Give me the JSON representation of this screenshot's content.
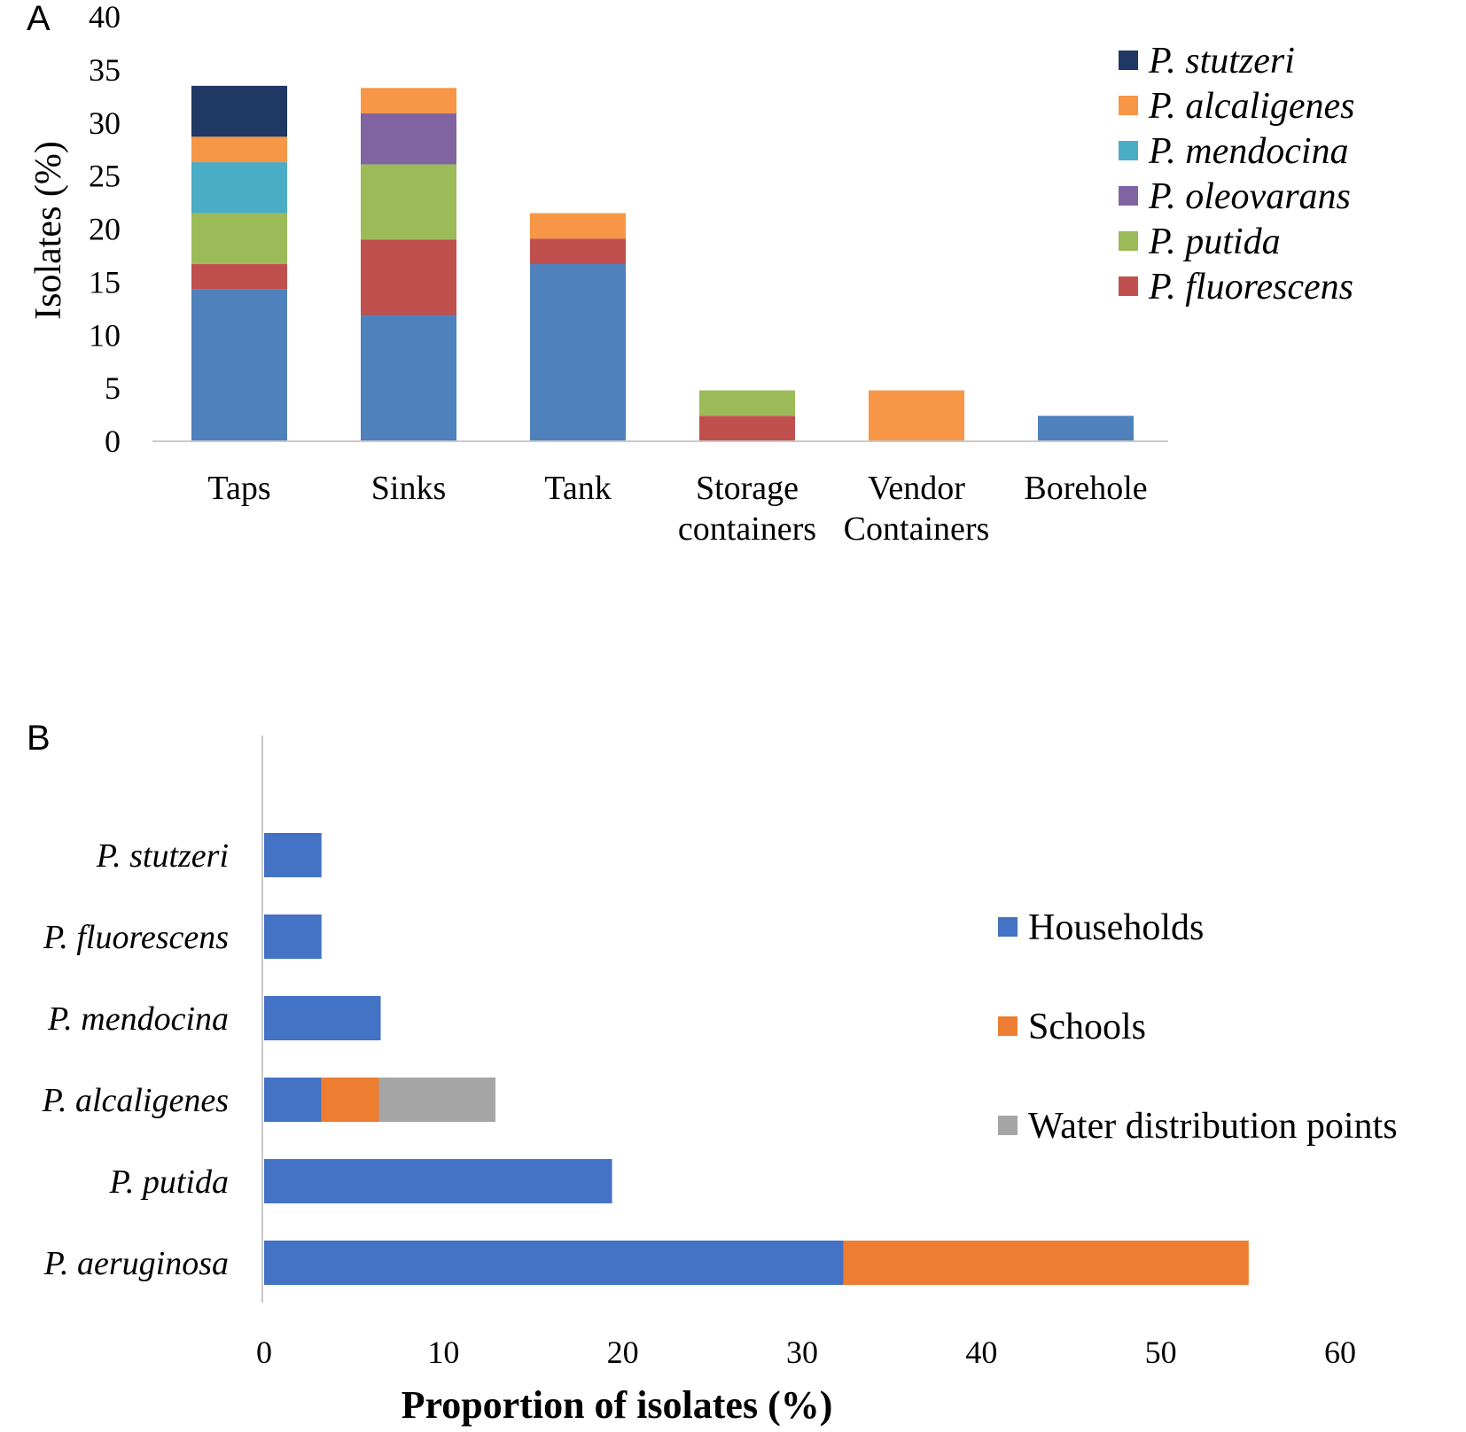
{
  "chart_data": [
    {
      "panel": "A",
      "type": "bar",
      "stacked": true,
      "orientation": "vertical",
      "ylabel": "Isolates (%)",
      "ylim": [
        0,
        40
      ],
      "yticks": [
        0,
        5,
        10,
        15,
        20,
        25,
        30,
        35,
        40
      ],
      "categories": [
        [
          "Taps"
        ],
        [
          "Sinks"
        ],
        [
          "Tank"
        ],
        [
          "Storage",
          "containers"
        ],
        [
          "Vendor",
          "Containers"
        ],
        [
          "Borehole"
        ]
      ],
      "series": [
        {
          "color": "#4f81bd",
          "values": [
            14.3,
            11.9,
            16.7,
            0,
            0,
            2.4
          ]
        },
        {
          "name": "P. fluorescens",
          "color": "#c0504d",
          "values": [
            2.4,
            7.1,
            2.4,
            2.4,
            0,
            0
          ]
        },
        {
          "name": "P. putida",
          "color": "#9bbb59",
          "values": [
            4.8,
            7.1,
            0,
            2.4,
            0,
            0
          ]
        },
        {
          "name": "P. oleovarans",
          "color": "#8064a2",
          "values": [
            0,
            4.8,
            0,
            0,
            0,
            0
          ]
        },
        {
          "name": "P. mendocina",
          "color": "#4bacc6",
          "values": [
            4.8,
            0,
            0,
            0,
            0,
            0
          ]
        },
        {
          "name": "P. alcaligenes",
          "color": "#f79646",
          "values": [
            2.4,
            2.4,
            2.4,
            0,
            4.8,
            0
          ]
        },
        {
          "name": "P. stutzeri",
          "color": "#1f3864",
          "values": [
            4.8,
            0,
            0,
            0,
            0,
            0
          ]
        }
      ],
      "legend": {
        "placement": "top-right",
        "entries": [
          {
            "name": "P. stutzeri",
            "color": "#1f3864"
          },
          {
            "name": "P. alcaligenes",
            "color": "#f79646"
          },
          {
            "name": "P. mendocina",
            "color": "#4bacc6"
          },
          {
            "name": "P. oleovarans",
            "color": "#8064a2"
          },
          {
            "name": "P. putida",
            "color": "#9bbb59"
          },
          {
            "name": "P. fluorescens",
            "color": "#c0504d"
          }
        ]
      }
    },
    {
      "panel": "B",
      "type": "bar",
      "stacked": true,
      "orientation": "horizontal",
      "xlabel": "Proportion of isolates (%)",
      "xlim": [
        0,
        60
      ],
      "xticks": [
        0,
        10,
        20,
        30,
        40,
        50,
        60
      ],
      "categories": [
        "P. stutzeri",
        "P. fluorescens",
        "P. mendocina",
        "P. alcaligenes",
        "P. putida",
        "P. aeruginosa"
      ],
      "series": [
        {
          "name": "Households",
          "color": "#4472c4",
          "values": [
            3.2,
            3.2,
            6.5,
            3.2,
            19.4,
            32.3
          ]
        },
        {
          "name": "Schools",
          "color": "#ed7d31",
          "values": [
            0,
            0,
            0,
            3.2,
            0,
            22.6
          ]
        },
        {
          "name": "Water distribution points",
          "color": "#a5a5a5",
          "values": [
            0,
            0,
            0,
            6.5,
            0,
            0
          ]
        }
      ],
      "legend": {
        "placement": "right"
      }
    }
  ]
}
